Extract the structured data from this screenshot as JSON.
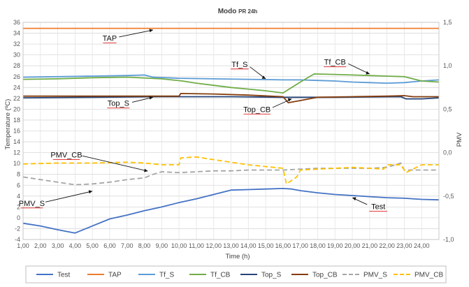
{
  "chart_data": {
    "type": "line",
    "title": "Modo",
    "title_suffix": "PR 24h",
    "xlabel": "Time (h)",
    "ylabel": "Temperature (ºC)",
    "y2label": "PMV",
    "x_ticks": [
      "1,00",
      "2,00",
      "3,00",
      "4,00",
      "5,00",
      "6,00",
      "7,00",
      "8,00",
      "9,00",
      "10,00",
      "11,00",
      "12,00",
      "13,00",
      "14,00",
      "15,00",
      "16,00",
      "17,00",
      "18,00",
      "19,00",
      "20,00",
      "21,00",
      "22,00",
      "23,00",
      "24,00"
    ],
    "xlim": [
      1,
      25
    ],
    "ylim": [
      -4,
      36
    ],
    "y_ticks": [
      -4,
      -2,
      0,
      2,
      4,
      6,
      8,
      10,
      12,
      14,
      16,
      18,
      20,
      22,
      24,
      26,
      28,
      30,
      32,
      34,
      36
    ],
    "y2lim": [
      -1.0,
      1.5
    ],
    "y2_ticks": [
      "-1,0",
      "-0,5",
      "0,0",
      "0,5",
      "1,0",
      "1,5"
    ],
    "y2_tick_values": [
      -1.0,
      -0.5,
      0.0,
      0.5,
      1.0,
      1.5
    ],
    "grid": true,
    "legend_position": "bottom",
    "series": [
      {
        "name": "Test",
        "color": "#4472C4",
        "axis": "left",
        "dash": "solid",
        "points": [
          [
            1,
            -1
          ],
          [
            2,
            -1.5
          ],
          [
            3,
            -2.2
          ],
          [
            4,
            -2.8
          ],
          [
            5,
            -1.5
          ],
          [
            6,
            -0.2
          ],
          [
            7,
            0.5
          ],
          [
            8,
            1.3
          ],
          [
            9,
            2
          ],
          [
            10,
            2.8
          ],
          [
            11,
            3.5
          ],
          [
            12,
            4.3
          ],
          [
            13,
            5.1
          ],
          [
            14,
            5.2
          ],
          [
            15,
            5.3
          ],
          [
            16,
            5.4
          ],
          [
            16.5,
            5.3
          ],
          [
            17,
            5
          ],
          [
            18,
            4.6
          ],
          [
            19,
            4.3
          ],
          [
            20,
            4.1
          ],
          [
            21,
            3.9
          ],
          [
            22,
            3.7
          ],
          [
            23,
            3.6
          ],
          [
            24,
            3.4
          ],
          [
            25,
            3.3
          ]
        ]
      },
      {
        "name": "TAP",
        "color": "#ED7D31",
        "axis": "left",
        "dash": "solid",
        "points": [
          [
            1,
            34.9
          ],
          [
            25,
            34.9
          ]
        ]
      },
      {
        "name": "Tf_S",
        "color": "#5B9BD5",
        "axis": "left",
        "dash": "solid",
        "points": [
          [
            1,
            25.9
          ],
          [
            3,
            26
          ],
          [
            5,
            26.1
          ],
          [
            7,
            26.2
          ],
          [
            8,
            26.3
          ],
          [
            8.5,
            25.9
          ],
          [
            10,
            25.7
          ],
          [
            12,
            25.6
          ],
          [
            14,
            25.5
          ],
          [
            16,
            25.4
          ],
          [
            17,
            25.4
          ],
          [
            18,
            25.3
          ],
          [
            19,
            25.2
          ],
          [
            20,
            25
          ],
          [
            21,
            24.9
          ],
          [
            22,
            24.8
          ],
          [
            23,
            24.9
          ],
          [
            24,
            25.2
          ],
          [
            25,
            25.4
          ]
        ]
      },
      {
        "name": "Tf_CB",
        "color": "#70AD47",
        "axis": "left",
        "dash": "solid",
        "points": [
          [
            1,
            25.5
          ],
          [
            3,
            25.6
          ],
          [
            5,
            25.8
          ],
          [
            7,
            25.9
          ],
          [
            9,
            25.6
          ],
          [
            10.2,
            25.2
          ],
          [
            11,
            24.8
          ],
          [
            12,
            24.4
          ],
          [
            13,
            24
          ],
          [
            14,
            23.7
          ],
          [
            15,
            23.4
          ],
          [
            16,
            23
          ],
          [
            17,
            25
          ],
          [
            17.8,
            26.5
          ],
          [
            19,
            26.4
          ],
          [
            20,
            26.3
          ],
          [
            21,
            26.2
          ],
          [
            22,
            26.1
          ],
          [
            23,
            26
          ],
          [
            24,
            25.2
          ],
          [
            25,
            25
          ]
        ]
      },
      {
        "name": "Top_S",
        "color": "#264478",
        "axis": "left",
        "dash": "solid",
        "points": [
          [
            1,
            22.1
          ],
          [
            5,
            22.2
          ],
          [
            9,
            22.3
          ],
          [
            13,
            22.3
          ],
          [
            16,
            22.2
          ],
          [
            19,
            22.2
          ],
          [
            22.8,
            22.3
          ],
          [
            23.1,
            21.9
          ],
          [
            24,
            21.9
          ],
          [
            25,
            22.1
          ]
        ]
      },
      {
        "name": "Top_CB",
        "color": "#843C0C",
        "axis": "left",
        "dash": "solid",
        "points": [
          [
            1,
            22.4
          ],
          [
            5,
            22.4
          ],
          [
            10,
            22.4
          ],
          [
            10.1,
            22.9
          ],
          [
            12,
            22.8
          ],
          [
            14,
            22.6
          ],
          [
            16,
            22.3
          ],
          [
            16.3,
            21.2
          ],
          [
            17,
            21.6
          ],
          [
            18,
            22.2
          ],
          [
            20,
            22.3
          ],
          [
            22,
            22.4
          ],
          [
            23,
            22.5
          ],
          [
            23.5,
            22.3
          ],
          [
            25,
            22.3
          ]
        ]
      },
      {
        "name": "PMV_S",
        "color": "#A5A5A5",
        "axis": "right",
        "dash": "dashed",
        "points": [
          [
            1,
            -0.28
          ],
          [
            2,
            -0.31
          ],
          [
            3,
            -0.34
          ],
          [
            4,
            -0.37
          ],
          [
            5,
            -0.36
          ],
          [
            6,
            -0.34
          ],
          [
            7,
            -0.31
          ],
          [
            8,
            -0.29
          ],
          [
            8.5,
            -0.25
          ],
          [
            9,
            -0.22
          ],
          [
            10,
            -0.23
          ],
          [
            11,
            -0.22
          ],
          [
            12,
            -0.21
          ],
          [
            13,
            -0.21
          ],
          [
            14,
            -0.2
          ],
          [
            15,
            -0.2
          ],
          [
            16,
            -0.2
          ],
          [
            17,
            -0.19
          ],
          [
            18,
            -0.18
          ],
          [
            19,
            -0.18
          ],
          [
            20,
            -0.18
          ],
          [
            21,
            -0.18
          ],
          [
            22,
            -0.17
          ],
          [
            22.8,
            -0.12
          ],
          [
            23,
            -0.2
          ],
          [
            24,
            -0.2
          ],
          [
            25,
            -0.2
          ]
        ]
      },
      {
        "name": "PMV_CB",
        "color": "#FFC000",
        "axis": "right",
        "dash": "dashed",
        "points": [
          [
            1,
            -0.13
          ],
          [
            3,
            -0.12
          ],
          [
            5,
            -0.12
          ],
          [
            7,
            -0.11
          ],
          [
            8,
            -0.12
          ],
          [
            9,
            -0.14
          ],
          [
            10,
            -0.14
          ],
          [
            10.1,
            -0.06
          ],
          [
            11,
            -0.05
          ],
          [
            12,
            -0.08
          ],
          [
            13,
            -0.11
          ],
          [
            14,
            -0.14
          ],
          [
            15,
            -0.16
          ],
          [
            16,
            -0.18
          ],
          [
            16.2,
            -0.36
          ],
          [
            16.8,
            -0.28
          ],
          [
            17,
            -0.2
          ],
          [
            18,
            -0.19
          ],
          [
            19,
            -0.18
          ],
          [
            20,
            -0.17
          ],
          [
            21,
            -0.18
          ],
          [
            21.8,
            -0.19
          ],
          [
            22,
            -0.14
          ],
          [
            22.8,
            -0.14
          ],
          [
            23.1,
            -0.23
          ],
          [
            24,
            -0.14
          ],
          [
            25,
            -0.14
          ]
        ]
      }
    ],
    "annotations": [
      {
        "text": "TAP",
        "at": [
          6,
          32.6
        ],
        "arrow_to": [
          8.5,
          34.6
        ]
      },
      {
        "text": "Tf_S",
        "at": [
          13.5,
          27.8
        ],
        "arrow_to": [
          15,
          25.6
        ]
      },
      {
        "text": "Tf_CB",
        "at": [
          19,
          28.2
        ],
        "arrow_to": [
          21,
          26.5
        ]
      },
      {
        "text": "Top_S",
        "at": [
          6.5,
          20.6
        ],
        "arrow_to": [
          8.5,
          22.2
        ]
      },
      {
        "text": "Top_CB",
        "at": [
          14.5,
          19.5
        ],
        "arrow_to": [
          16.5,
          21.9
        ]
      },
      {
        "text": "PMV_CB",
        "at": [
          3.5,
          11.1
        ],
        "arrow_to": [
          8.2,
          8.6
        ]
      },
      {
        "text": "PMV_S",
        "at": [
          1.5,
          2.2
        ],
        "arrow_to": [
          5,
          4.9
        ]
      },
      {
        "text": "Test",
        "at": [
          21.5,
          1.6
        ],
        "arrow_to": [
          20,
          3.7
        ]
      }
    ]
  }
}
